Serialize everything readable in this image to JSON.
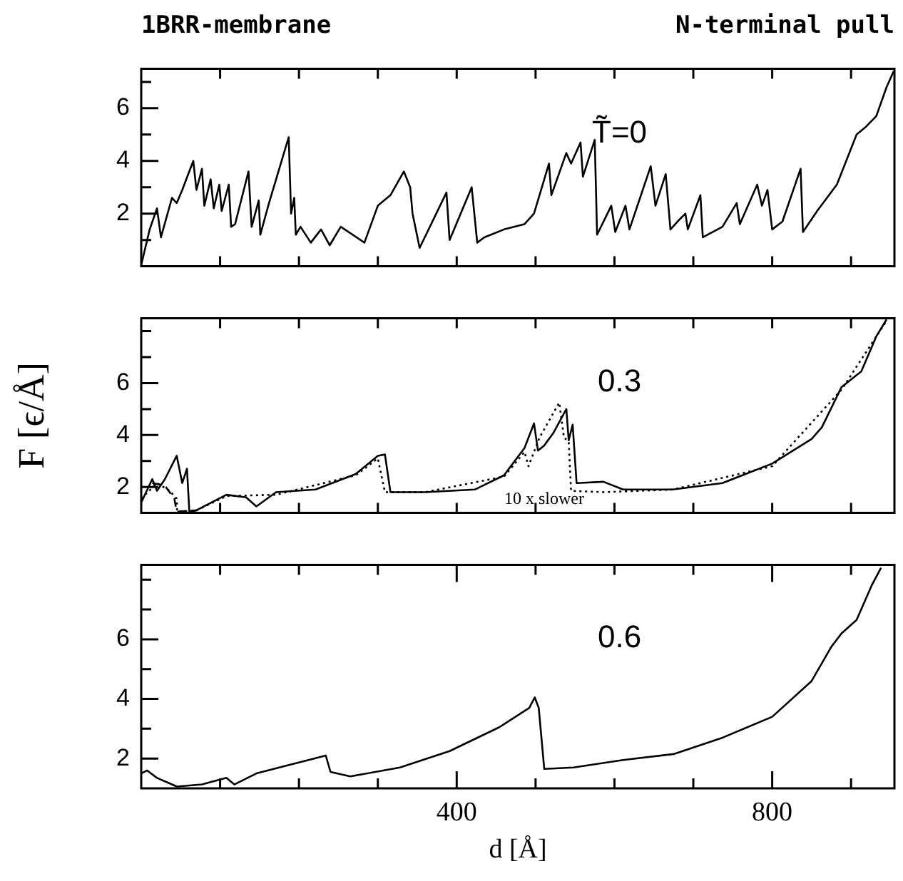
{
  "chart_data": [
    {
      "type": "line",
      "title": "1BRR-membrane",
      "subtitle": "N-terminal pull",
      "annotations": [
        "T̃=0"
      ],
      "grid": false,
      "tick_labels": "y",
      "line_style": "solid",
      "xlim": [
        0,
        955
      ],
      "ylim": [
        0,
        7.5
      ],
      "xticks": [
        {
          "value": 100,
          "label": null
        },
        {
          "value": 200,
          "label": null
        },
        {
          "value": 300,
          "label": null
        },
        {
          "value": 400,
          "label": null
        },
        {
          "value": 500,
          "label": null
        },
        {
          "value": 600,
          "label": null
        },
        {
          "value": 700,
          "label": null
        },
        {
          "value": 800,
          "label": null
        },
        {
          "value": 900,
          "label": null
        }
      ],
      "yticks": [
        {
          "value": 1,
          "label": null
        },
        2,
        {
          "value": 3,
          "label": null
        },
        4,
        {
          "value": 5,
          "label": null
        },
        6,
        {
          "value": 7,
          "label": null
        }
      ],
      "series": [
        {
          "color": "#000000",
          "x": [
            0,
            10.7,
            20,
            25,
            39,
            45,
            52,
            66,
            70,
            77,
            80,
            88,
            92,
            99,
            102,
            111,
            114,
            119,
            136,
            140,
            149,
            151,
            162,
            187,
            190,
            194,
            196,
            202,
            215,
            228,
            239,
            253,
            283,
            300,
            316,
            333,
            341,
            344,
            353,
            387,
            391,
            419,
            426,
            435,
            460,
            486,
            498,
            517,
            520,
            539,
            545,
            557,
            560,
            575,
            578,
            596,
            601,
            614,
            619,
            646,
            652,
            665,
            671,
            680,
            690,
            693,
            709,
            712,
            737,
            755,
            759,
            781,
            787,
            794,
            800,
            813,
            836,
            839,
            857,
            882,
            907,
            919,
            932,
            945,
            954
          ],
          "values": [
            0.05,
            1.4,
            2.2,
            1.1,
            2.6,
            2.4,
            2.9,
            4.0,
            2.9,
            3.7,
            2.3,
            3.3,
            2.2,
            3.1,
            2.1,
            3.1,
            1.5,
            1.6,
            3.6,
            1.5,
            2.5,
            1.2,
            2.4,
            4.9,
            2.0,
            2.6,
            1.2,
            1.5,
            0.9,
            1.4,
            0.8,
            1.5,
            0.9,
            2.3,
            2.7,
            3.6,
            3.0,
            2.0,
            0.7,
            2.8,
            1.0,
            3.0,
            0.9,
            1.1,
            1.4,
            1.6,
            2.0,
            3.9,
            2.7,
            4.3,
            3.9,
            4.7,
            3.4,
            4.8,
            1.2,
            2.3,
            1.3,
            2.3,
            1.4,
            3.8,
            2.3,
            3.5,
            1.4,
            1.7,
            2.0,
            1.4,
            2.7,
            1.1,
            1.5,
            2.4,
            1.6,
            3.1,
            2.3,
            2.9,
            1.4,
            1.7,
            3.7,
            1.3,
            2.1,
            3.1,
            5.0,
            5.3,
            5.7,
            6.8,
            7.4
          ]
        }
      ]
    },
    {
      "type": "line",
      "ylabel": "F [ϵ/Å]",
      "annotations": [
        "0.3",
        "10 x slower"
      ],
      "grid": false,
      "tick_labels": "y",
      "xlim": [
        0,
        955
      ],
      "ylim": [
        1,
        8.5
      ],
      "xticks": [
        {
          "value": 100,
          "label": null
        },
        {
          "value": 200,
          "label": null
        },
        {
          "value": 300,
          "label": null
        },
        {
          "value": 400,
          "label": null
        },
        {
          "value": 500,
          "label": null
        },
        {
          "value": 600,
          "label": null
        },
        {
          "value": 700,
          "label": null
        },
        {
          "value": 800,
          "label": null
        },
        {
          "value": 900,
          "label": null
        }
      ],
      "yticks": [
        2,
        {
          "value": 3,
          "label": null
        },
        4,
        {
          "value": 5,
          "label": null
        },
        6,
        {
          "value": 7,
          "label": null
        },
        {
          "value": 8,
          "label": null
        }
      ],
      "series": [
        {
          "color": "#000000",
          "line_style": "solid",
          "x": [
            0,
            14,
            20,
            30,
            45,
            52,
            58,
            61,
            70,
            108,
            133,
            146,
            171,
            221,
            272,
            300,
            309,
            316,
            360,
            423,
            460,
            486,
            498,
            503,
            511,
            523,
            539,
            542,
            547,
            552,
            586,
            611,
            674,
            737,
            800,
            850,
            863,
            888,
            913,
            932,
            945
          ],
          "values": [
            1.4,
            2.3,
            1.85,
            2.3,
            3.2,
            2.15,
            2.7,
            1.05,
            1.1,
            1.7,
            1.6,
            1.25,
            1.8,
            1.9,
            2.5,
            3.2,
            3.25,
            1.8,
            1.8,
            1.9,
            2.45,
            3.5,
            4.45,
            3.4,
            3.6,
            4.1,
            5.0,
            3.8,
            4.4,
            2.15,
            2.2,
            1.9,
            1.9,
            2.15,
            2.9,
            3.85,
            4.3,
            5.85,
            6.45,
            7.8,
            8.45
          ]
        },
        {
          "color": "#000000",
          "line_style": "dotted",
          "x": [
            0,
            20,
            36,
            45,
            45.5,
            70,
            108,
            171,
            272,
            300,
            309,
            360,
            460,
            486,
            491,
            505,
            530,
            536,
            542,
            545,
            586,
            674,
            800,
            888,
            945
          ],
          "values": [
            1.55,
            2.15,
            1.85,
            1.55,
            1.05,
            1.1,
            1.65,
            1.7,
            2.45,
            3.1,
            1.8,
            1.8,
            2.4,
            3.35,
            2.8,
            3.9,
            5.25,
            3.9,
            3.75,
            1.85,
            1.8,
            1.9,
            2.8,
            5.75,
            8.4
          ]
        },
        {
          "color": "#000000",
          "line_style": "dashed",
          "x": [
            14,
            30,
            42,
            45,
            70
          ],
          "values": [
            2.15,
            2.05,
            1.55,
            1.05,
            1.1
          ]
        }
      ]
    },
    {
      "type": "line",
      "xlabel": "d [Å]",
      "annotations": [
        "0.6"
      ],
      "grid": false,
      "line_style": "solid",
      "xlim": [
        0,
        955
      ],
      "ylim": [
        1,
        8.5
      ],
      "xticks": [
        {
          "value": 100,
          "label": null
        },
        {
          "value": 200,
          "label": null
        },
        {
          "value": 300,
          "label": null
        },
        400,
        {
          "value": 500,
          "label": null
        },
        {
          "value": 600,
          "label": null
        },
        {
          "value": 700,
          "label": null
        },
        800,
        {
          "value": 900,
          "label": null
        }
      ],
      "yticks": [
        2,
        {
          "value": 3,
          "label": null
        },
        4,
        {
          "value": 5,
          "label": null
        },
        6,
        {
          "value": 7,
          "label": null
        },
        {
          "value": 8,
          "label": null
        }
      ],
      "series": [
        {
          "color": "#000000",
          "x": [
            0,
            7.5,
            20,
            39,
            45,
            77,
            108,
            118,
            146,
            190,
            234,
            240,
            265,
            328,
            391,
            454,
            492,
            499,
            504,
            511,
            548,
            611,
            675,
            737,
            800,
            850,
            875,
            888,
            907,
            926,
            938
          ],
          "values": [
            1.5,
            1.6,
            1.35,
            1.13,
            1.06,
            1.13,
            1.35,
            1.13,
            1.5,
            1.8,
            2.1,
            1.55,
            1.4,
            1.7,
            2.25,
            3.05,
            3.7,
            4.05,
            3.7,
            1.65,
            1.7,
            1.95,
            2.15,
            2.7,
            3.4,
            4.6,
            5.75,
            6.2,
            6.65,
            7.8,
            8.4
          ]
        }
      ]
    }
  ]
}
